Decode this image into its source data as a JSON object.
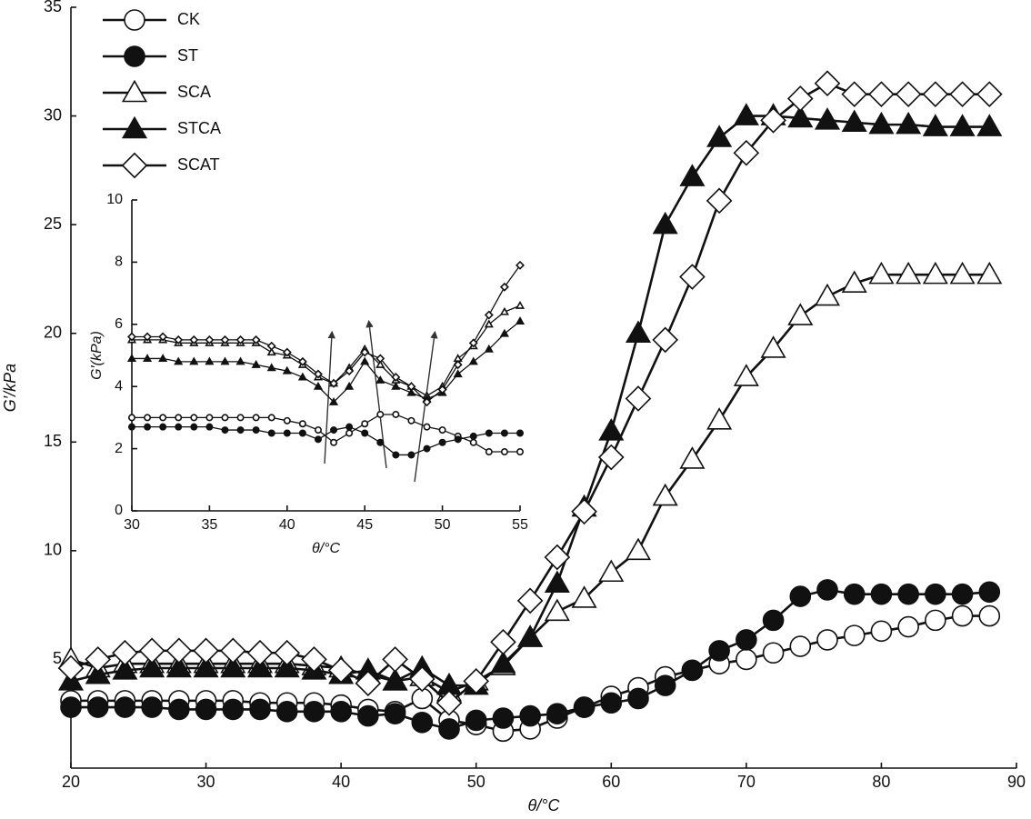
{
  "chart_data": [
    {
      "type": "line",
      "x_label": "θ/°C",
      "y_label": "G′/kPa",
      "legend": "upper left",
      "x": [
        20,
        22,
        24,
        26,
        28,
        30,
        32,
        34,
        36,
        38,
        40,
        42,
        44,
        46,
        48,
        50,
        52,
        54,
        56,
        58,
        60,
        62,
        64,
        66,
        68,
        70,
        72,
        74,
        76,
        78,
        80,
        82,
        84,
        86,
        88
      ],
      "xlim": [
        20,
        90
      ],
      "xticks": [
        20,
        30,
        40,
        50,
        60,
        70,
        80,
        90
      ],
      "ylim": [
        0,
        35
      ],
      "yticks": [
        5,
        10,
        15,
        20,
        25,
        30,
        35
      ],
      "series": [
        {
          "name": "CK",
          "color": "#111111",
          "marker": "circle",
          "filled": false,
          "values": [
            3.1,
            3.1,
            3.1,
            3.1,
            3.1,
            3.1,
            3.1,
            3.0,
            3.0,
            3.0,
            2.9,
            2.7,
            2.6,
            3.2,
            2.2,
            2.0,
            1.7,
            1.8,
            2.3,
            2.8,
            3.3,
            3.7,
            4.2,
            4.5,
            4.8,
            5.0,
            5.3,
            5.6,
            5.9,
            6.1,
            6.3,
            6.5,
            6.8,
            7.0,
            7.0
          ]
        },
        {
          "name": "ST",
          "color": "#111111",
          "marker": "circle",
          "filled": true,
          "values": [
            2.8,
            2.8,
            2.8,
            2.8,
            2.7,
            2.7,
            2.7,
            2.7,
            2.6,
            2.6,
            2.6,
            2.4,
            2.5,
            2.1,
            1.8,
            2.2,
            2.3,
            2.4,
            2.5,
            2.8,
            3.0,
            3.2,
            3.8,
            4.5,
            5.4,
            5.9,
            6.8,
            7.9,
            8.2,
            8.0,
            8.0,
            8.0,
            8.0,
            8.0,
            8.1
          ]
        },
        {
          "name": "SCA",
          "color": "#111111",
          "marker": "triangle",
          "filled": false,
          "values": [
            5.0,
            4.6,
            4.8,
            4.8,
            4.8,
            4.8,
            4.8,
            4.8,
            4.8,
            4.7,
            4.6,
            4.3,
            4.0,
            4.2,
            3.5,
            4.0,
            4.7,
            6.0,
            7.2,
            7.8,
            9.0,
            10.0,
            12.5,
            14.2,
            16.0,
            18.0,
            19.3,
            20.8,
            21.7,
            22.3,
            22.7,
            22.7,
            22.7,
            22.7,
            22.7
          ]
        },
        {
          "name": "STCA",
          "color": "#111111",
          "marker": "triangle",
          "filled": true,
          "values": [
            4.0,
            4.3,
            4.5,
            4.6,
            4.6,
            4.6,
            4.6,
            4.6,
            4.6,
            4.5,
            4.3,
            4.5,
            4.0,
            4.6,
            3.8,
            3.8,
            4.8,
            6.0,
            8.5,
            12.0,
            15.5,
            20.0,
            25.0,
            27.2,
            29.0,
            30.0,
            30.0,
            29.9,
            29.8,
            29.7,
            29.6,
            29.6,
            29.5,
            29.5,
            29.5
          ]
        },
        {
          "name": "SCAT",
          "color": "#111111",
          "marker": "diamond",
          "filled": false,
          "values": [
            4.6,
            5.0,
            5.3,
            5.4,
            5.4,
            5.4,
            5.4,
            5.3,
            5.3,
            5.0,
            4.5,
            3.9,
            5.0,
            4.1,
            3.0,
            4.0,
            5.8,
            7.7,
            9.7,
            11.8,
            14.3,
            17.0,
            19.7,
            22.6,
            26.1,
            28.3,
            29.8,
            30.8,
            31.5,
            31.0,
            31.0,
            31.0,
            31.0,
            31.0,
            31.0
          ]
        }
      ]
    },
    {
      "type": "line",
      "x_label": "θ/°C",
      "y_label": "G′(kPa)",
      "x": [
        30,
        31,
        32,
        33,
        34,
        35,
        36,
        37,
        38,
        39,
        40,
        41,
        42,
        43,
        44,
        45,
        46,
        47,
        48,
        49,
        50,
        51,
        52,
        53,
        54,
        55
      ],
      "xlim": [
        30,
        55
      ],
      "xticks": [
        30,
        35,
        40,
        45,
        50,
        55
      ],
      "ylim": [
        0,
        10
      ],
      "yticks": [
        0,
        2,
        4,
        6,
        8,
        10
      ],
      "series": [
        {
          "color": "#111111",
          "marker": "circle",
          "filled": false,
          "values": [
            3.0,
            3.0,
            3.0,
            3.0,
            3.0,
            3.0,
            3.0,
            3.0,
            3.0,
            3.0,
            2.9,
            2.8,
            2.6,
            2.2,
            2.5,
            2.8,
            3.1,
            3.1,
            2.9,
            2.7,
            2.6,
            2.4,
            2.2,
            1.9,
            1.9,
            1.9
          ]
        },
        {
          "color": "#111111",
          "marker": "circle",
          "filled": true,
          "values": [
            2.7,
            2.7,
            2.7,
            2.7,
            2.7,
            2.7,
            2.6,
            2.6,
            2.6,
            2.5,
            2.5,
            2.5,
            2.3,
            2.6,
            2.7,
            2.5,
            2.2,
            1.8,
            1.8,
            2.0,
            2.2,
            2.3,
            2.4,
            2.5,
            2.5,
            2.5
          ]
        },
        {
          "color": "#111111",
          "marker": "triangle",
          "filled": false,
          "values": [
            5.5,
            5.5,
            5.5,
            5.4,
            5.4,
            5.4,
            5.4,
            5.4,
            5.4,
            5.1,
            5.0,
            4.7,
            4.3,
            4.1,
            4.6,
            5.2,
            4.7,
            4.2,
            4.0,
            3.7,
            4.0,
            4.9,
            5.3,
            6.0,
            6.4,
            6.6
          ]
        },
        {
          "color": "#111111",
          "marker": "triangle",
          "filled": true,
          "values": [
            4.9,
            4.9,
            4.9,
            4.8,
            4.8,
            4.8,
            4.8,
            4.8,
            4.7,
            4.6,
            4.5,
            4.3,
            4.0,
            3.5,
            4.0,
            4.8,
            4.2,
            4.0,
            3.8,
            3.6,
            3.8,
            4.4,
            4.8,
            5.2,
            5.7,
            6.1
          ]
        },
        {
          "color": "#111111",
          "marker": "diamond",
          "filled": false,
          "values": [
            5.6,
            5.6,
            5.6,
            5.5,
            5.5,
            5.5,
            5.5,
            5.5,
            5.5,
            5.3,
            5.1,
            4.8,
            4.4,
            4.1,
            4.5,
            5.1,
            4.9,
            4.3,
            4.0,
            3.5,
            3.9,
            4.7,
            5.4,
            6.3,
            7.2,
            7.9
          ]
        }
      ]
    }
  ]
}
